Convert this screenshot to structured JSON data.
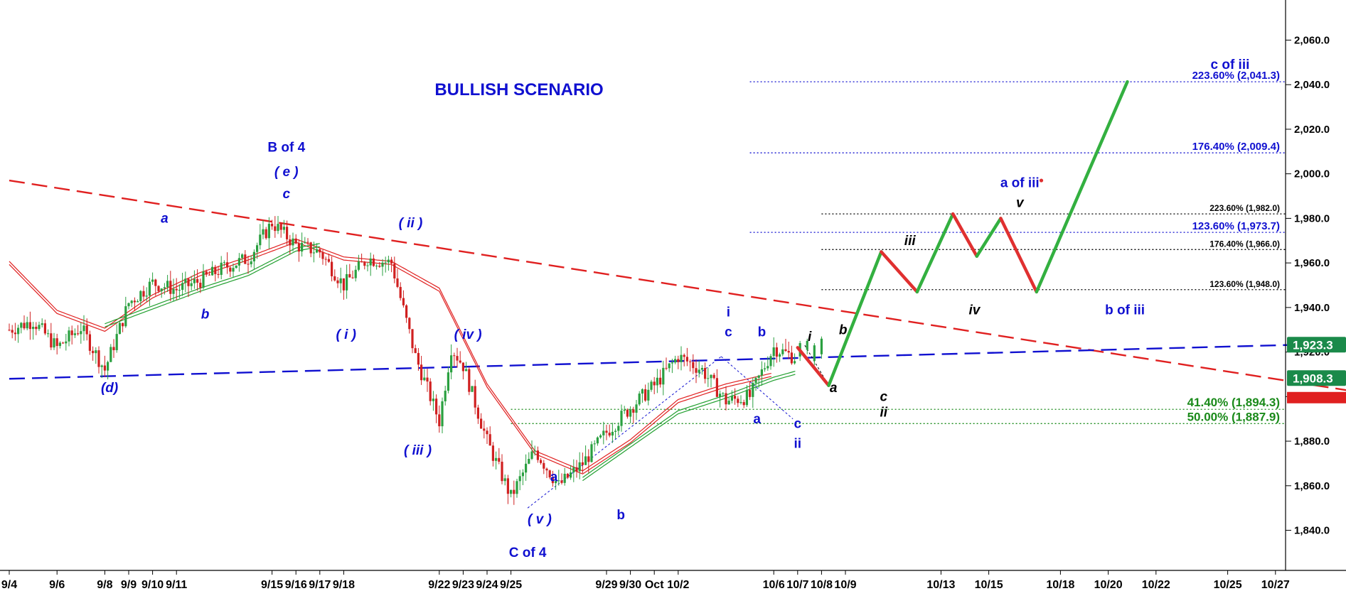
{
  "chart_data": {
    "type": "line",
    "title": "BULLISH SCENARIO",
    "xlabel": "",
    "ylabel": "",
    "ylim": [
      1822,
      2078
    ],
    "y_ticks": [
      "1,840.0",
      "1,860.0",
      "1,880.0",
      "1,900.0",
      "1,920.0",
      "1,940.0",
      "1,960.0",
      "1,980.0",
      "2,000.0",
      "2,020.0",
      "2,040.0",
      "2,060.0"
    ],
    "y_tick_values": [
      1840,
      1860,
      1880,
      1900,
      1920,
      1940,
      1960,
      1980,
      2000,
      2020,
      2040,
      2060
    ],
    "x_ticks": [
      "9/4",
      "9/6",
      "9/8",
      "9/9",
      "9/10",
      "9/11",
      "9/15",
      "9/16",
      "9/17",
      "9/18",
      "9/22",
      "9/23",
      "9/24",
      "9/25",
      "9/29",
      "9/30",
      "Oct",
      "10/2",
      "10/6",
      "10/7",
      "10/8",
      "10/9",
      "10/13",
      "10/15",
      "10/18",
      "10/20",
      "10/22",
      "10/25",
      "10/27"
    ],
    "x_tick_index": [
      0,
      2,
      4,
      5,
      6,
      7,
      11,
      12,
      13,
      14,
      18,
      19,
      20,
      21,
      25,
      26,
      27,
      28,
      32,
      33,
      34,
      35,
      39,
      41,
      44,
      46,
      48,
      51,
      53
    ],
    "price_path": [
      [
        0,
        1930
      ],
      [
        1,
        1934
      ],
      [
        2,
        1922
      ],
      [
        3,
        1931
      ],
      [
        4,
        1912
      ],
      [
        5,
        1942
      ],
      [
        6,
        1951
      ],
      [
        7,
        1948
      ],
      [
        8,
        1952
      ],
      [
        9,
        1958
      ],
      [
        10,
        1962
      ],
      [
        11,
        1978
      ],
      [
        12,
        1968
      ],
      [
        13,
        1965
      ],
      [
        14,
        1950
      ],
      [
        15,
        1962
      ],
      [
        16,
        1960
      ],
      [
        17,
        1918
      ],
      [
        18,
        1889
      ],
      [
        18.5,
        1922
      ],
      [
        19,
        1914
      ],
      [
        20,
        1880
      ],
      [
        21,
        1855
      ],
      [
        22,
        1876
      ],
      [
        23,
        1860
      ],
      [
        24,
        1870
      ],
      [
        25,
        1884
      ],
      [
        26,
        1895
      ],
      [
        27,
        1905
      ],
      [
        28,
        1918
      ],
      [
        29,
        1912
      ],
      [
        30,
        1898
      ],
      [
        31,
        1900
      ],
      [
        32,
        1922
      ],
      [
        33,
        1917
      ],
      [
        34,
        1922
      ]
    ],
    "moving_averages": [
      {
        "color": "#e02020",
        "values": [
          [
            0,
            1960
          ],
          [
            2,
            1938
          ],
          [
            4,
            1930
          ],
          [
            6,
            1945
          ],
          [
            8,
            1955
          ],
          [
            10,
            1962
          ],
          [
            12,
            1970
          ],
          [
            14,
            1962
          ],
          [
            16,
            1960
          ],
          [
            18,
            1948
          ],
          [
            20,
            1905
          ],
          [
            22,
            1875
          ],
          [
            24,
            1866
          ],
          [
            26,
            1880
          ],
          [
            28,
            1898
          ],
          [
            30,
            1905
          ],
          [
            32,
            1910
          ]
        ]
      },
      {
        "color": "#22a030",
        "values": [
          [
            4,
            1932
          ],
          [
            6,
            1940
          ],
          [
            8,
            1948
          ],
          [
            10,
            1955
          ],
          [
            12,
            1966
          ],
          [
            13,
            1968
          ]
        ]
      },
      {
        "color": "#22a030",
        "values": [
          [
            24,
            1863
          ],
          [
            26,
            1878
          ],
          [
            28,
            1893
          ],
          [
            30,
            1900
          ],
          [
            32,
            1908
          ],
          [
            33,
            1911
          ]
        ]
      }
    ],
    "projection": {
      "up_color": "#33b040",
      "down_color": "#e03030",
      "points": [
        [
          33,
          1922
        ],
        [
          34.3,
          1905
        ],
        [
          36.5,
          1965
        ],
        [
          38,
          1947
        ],
        [
          39.5,
          1982
        ],
        [
          40.5,
          1963
        ],
        [
          41.5,
          1980
        ],
        [
          43,
          1947
        ],
        [
          46.8,
          2041.3
        ]
      ]
    },
    "trendlines": [
      {
        "name": "resistance",
        "color": "#e02020",
        "from": [
          0,
          1997
        ],
        "to": [
          56.5,
          1902
        ]
      },
      {
        "name": "support",
        "color": "#1010d0",
        "from": [
          0,
          1908
        ],
        "to": [
          56.5,
          1924
        ]
      }
    ],
    "fib_levels": [
      {
        "label": "223.60% (2,041.3)",
        "value": 2041.3,
        "color": "#1010d0",
        "start": 31
      },
      {
        "label": "176.40% (2,009.4)",
        "value": 2009.4,
        "color": "#1010d0",
        "start": 31
      },
      {
        "label": "223.60% (1,982.0)",
        "value": 1982.0,
        "color": "#000000",
        "start": 34
      },
      {
        "label": "123.60% (1,973.7)",
        "value": 1973.7,
        "color": "#1010d0",
        "start": 31
      },
      {
        "label": "176.40% (1,966.0)",
        "value": 1966.0,
        "color": "#000000",
        "start": 34
      },
      {
        "label": "123.60% (1,948.0)",
        "value": 1948.0,
        "color": "#000000",
        "start": 34
      },
      {
        "label": "41.40% (1,894.3)",
        "value": 1894.3,
        "color": "#1a8a1a",
        "start": 21
      },
      {
        "label": "50.00% (1,887.9)",
        "value": 1887.9,
        "color": "#1a8a1a",
        "start": 21
      }
    ],
    "price_tags": [
      {
        "text": "1,923.3",
        "value": 1923.3,
        "bg": "#1a8a4a"
      },
      {
        "text": "1,908.3",
        "value": 1908.3,
        "bg": "#1a8a4a"
      }
    ],
    "wave_labels": [
      {
        "text": "B of 4",
        "x": 11.6,
        "y": 2010,
        "color": "#1010d0",
        "upright": true
      },
      {
        "text": "( e )",
        "x": 11.6,
        "y": 1999,
        "color": "#1010d0"
      },
      {
        "text": "c",
        "x": 11.6,
        "y": 1989,
        "color": "#1010d0"
      },
      {
        "text": "a",
        "x": 6.5,
        "y": 1978,
        "color": "#1010d0"
      },
      {
        "text": "b",
        "x": 8.2,
        "y": 1935,
        "color": "#1010d0"
      },
      {
        "text": "( ii )",
        "x": 16.8,
        "y": 1976,
        "color": "#1010d0"
      },
      {
        "text": "( i )",
        "x": 14.1,
        "y": 1926,
        "color": "#1010d0"
      },
      {
        "text": "( iv )",
        "x": 19.2,
        "y": 1926,
        "color": "#1010d0"
      },
      {
        "text": "(d)",
        "x": 4.2,
        "y": 1902,
        "color": "#1010d0"
      },
      {
        "text": "( iii )",
        "x": 17.1,
        "y": 1874,
        "color": "#1010d0"
      },
      {
        "text": "a",
        "x": 22.8,
        "y": 1862,
        "color": "#1010d0",
        "upright": true
      },
      {
        "text": "( v )",
        "x": 22.2,
        "y": 1843,
        "color": "#1010d0"
      },
      {
        "text": "b",
        "x": 25.6,
        "y": 1845,
        "color": "#1010d0",
        "upright": true
      },
      {
        "text": "C of 4",
        "x": 21.7,
        "y": 1828,
        "color": "#1010d0",
        "upright": true
      },
      {
        "text": "i",
        "x": 30.1,
        "y": 1936,
        "color": "#1010d0",
        "upright": true
      },
      {
        "text": "c",
        "x": 30.1,
        "y": 1927,
        "color": "#1010d0",
        "upright": true
      },
      {
        "text": "b",
        "x": 31.5,
        "y": 1927,
        "color": "#1010d0",
        "upright": true
      },
      {
        "text": "a",
        "x": 31.3,
        "y": 1888,
        "color": "#1010d0",
        "upright": true
      },
      {
        "text": "c",
        "x": 33.0,
        "y": 1886,
        "color": "#1010d0",
        "upright": true
      },
      {
        "text": "ii",
        "x": 33.0,
        "y": 1877,
        "color": "#1010d0",
        "upright": true
      },
      {
        "text": "i",
        "x": 33.5,
        "y": 1925,
        "color": "#000000"
      },
      {
        "text": "b",
        "x": 34.9,
        "y": 1928,
        "color": "#000000"
      },
      {
        "text": "a",
        "x": 34.5,
        "y": 1902,
        "color": "#000000"
      },
      {
        "text": "c",
        "x": 36.6,
        "y": 1898,
        "color": "#000000"
      },
      {
        "text": "ii",
        "x": 36.6,
        "y": 1891,
        "color": "#000000"
      },
      {
        "text": "iii",
        "x": 37.7,
        "y": 1968,
        "color": "#000000"
      },
      {
        "text": "iv",
        "x": 40.4,
        "y": 1937,
        "color": "#000000"
      },
      {
        "text": "v",
        "x": 42.3,
        "y": 1985,
        "color": "#000000"
      },
      {
        "text": "a of iii",
        "x": 42.3,
        "y": 1994,
        "color": "#1010d0",
        "upright": true
      },
      {
        "text": "b of iii",
        "x": 46.7,
        "y": 1937,
        "color": "#1010d0",
        "upright": true
      },
      {
        "text": "c of iii",
        "x": 51.1,
        "y": 2047,
        "color": "#1010d0",
        "upright": true
      }
    ],
    "grid": false,
    "legend": "none"
  }
}
